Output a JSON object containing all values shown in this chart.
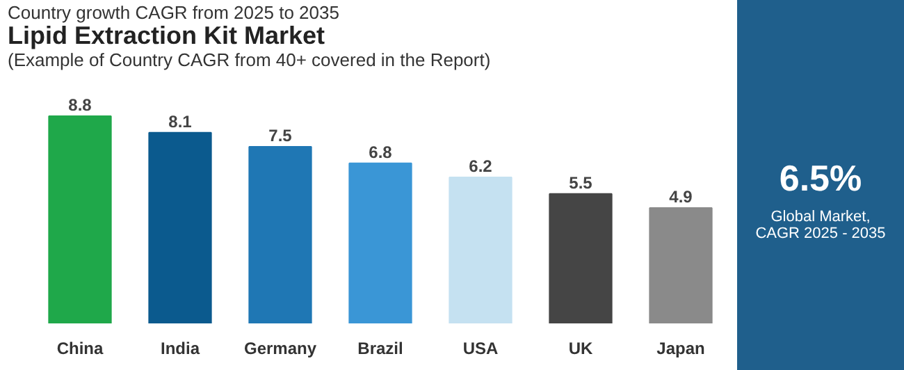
{
  "chart_data": {
    "type": "bar",
    "subtitle": "Country growth CAGR from 2025 to 2035",
    "title": "Lipid Extraction Kit Market",
    "annotations": [
      "(Example of Country CAGR from 40+ covered in the Report)",
      "6.5%",
      "Global Market,\nCAGR 2025 - 2035"
    ],
    "categories": [
      "China",
      "India",
      "Germany",
      "Brazil",
      "USA",
      "UK",
      "Japan"
    ],
    "values": [
      8.8,
      8.1,
      7.5,
      6.8,
      6.2,
      5.5,
      4.9
    ],
    "colors": [
      "#1fa84a",
      "#0b5a8e",
      "#1f77b4",
      "#3a96d6",
      "#c5e1f1",
      "#454545",
      "#8a8a8a"
    ],
    "data_labels": true
  }
}
